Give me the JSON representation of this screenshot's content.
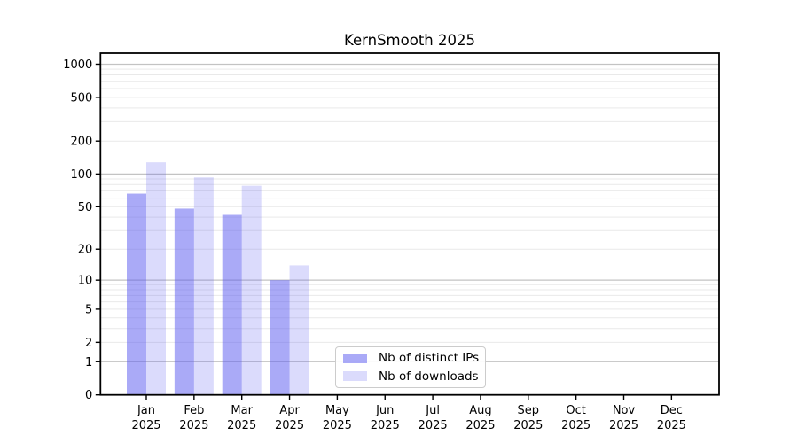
{
  "figure": {
    "background": "#ffffff"
  },
  "chart_data": {
    "type": "bar",
    "title": "KernSmooth 2025",
    "categories": [
      "Jan",
      "Feb",
      "Mar",
      "Apr",
      "May",
      "Jun",
      "Jul",
      "Aug",
      "Sep",
      "Oct",
      "Nov",
      "Dec"
    ],
    "x_year_label": "2025",
    "series": [
      {
        "key": "distinct_ips",
        "name": "Nb of distinct IPs",
        "color": "rgba(85,85,240,0.50)",
        "values": [
          66,
          48,
          42,
          10,
          null,
          null,
          null,
          null,
          null,
          null,
          null,
          null
        ]
      },
      {
        "key": "downloads",
        "name": "Nb of downloads",
        "color": "rgba(85,85,240,0.21)",
        "values": [
          128,
          93,
          78,
          14,
          null,
          null,
          null,
          null,
          null,
          null,
          null,
          null
        ]
      }
    ],
    "y_scale": "log10(1+y)",
    "y_ticks": [
      0,
      1,
      2,
      5,
      10,
      20,
      50,
      100,
      200,
      500,
      1000
    ],
    "ylim": [
      0,
      1260
    ],
    "xlabel": "",
    "ylabel": "",
    "grid": true,
    "legend_position": "lower-center-inside",
    "colors": {
      "major_gridline": "#c3c3c3",
      "minor_gridline": "#e9e9e9",
      "axis": "#000000"
    }
  }
}
